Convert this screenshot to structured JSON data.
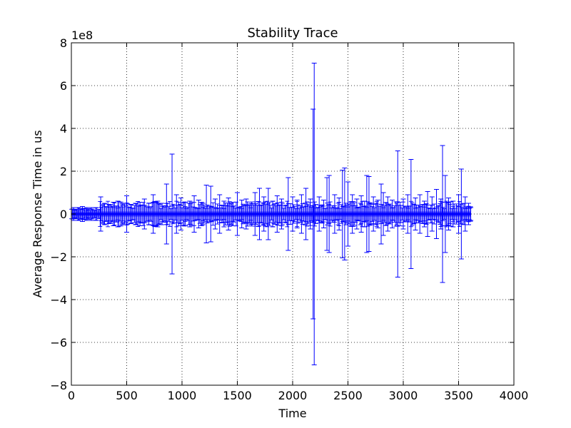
{
  "chart_data": {
    "type": "scatter",
    "title": "Stability Trace",
    "xlabel": "Time",
    "ylabel": "Average Response Time in us",
    "y_offset_label": "1e8",
    "xlim": [
      0,
      4000
    ],
    "ylim": [
      -8,
      8
    ],
    "y_scale": 100000000,
    "grid": true,
    "x_ticks": [
      0,
      500,
      1000,
      1500,
      2000,
      2500,
      3000,
      3500,
      4000
    ],
    "y_ticks": [
      -8,
      -6,
      -4,
      -2,
      0,
      2,
      4,
      6,
      8
    ],
    "x_tick_labels": [
      "0",
      "500",
      "1000",
      "1500",
      "2000",
      "2500",
      "3000",
      "3500",
      "4000"
    ],
    "y_tick_labels": [
      "−8",
      "−6",
      "−4",
      "−2",
      "0",
      "2",
      "4",
      "6",
      "8"
    ],
    "series_color": "#0000ff",
    "x_range": [
      0,
      3610
    ],
    "sampling_note": "representative sample of error-bar traces",
    "points": [
      {
        "x": 20,
        "err": 0.3
      },
      {
        "x": 60,
        "err": 0.3
      },
      {
        "x": 100,
        "err": 0.35
      },
      {
        "x": 140,
        "err": 0.3
      },
      {
        "x": 180,
        "err": 0.3
      },
      {
        "x": 220,
        "err": 0.3
      },
      {
        "x": 265,
        "err": 0.8
      },
      {
        "x": 300,
        "err": 0.5
      },
      {
        "x": 340,
        "err": 0.45
      },
      {
        "x": 380,
        "err": 0.55
      },
      {
        "x": 420,
        "err": 0.6
      },
      {
        "x": 460,
        "err": 0.5
      },
      {
        "x": 500,
        "err": 0.85
      },
      {
        "x": 540,
        "err": 0.45
      },
      {
        "x": 580,
        "err": 0.5
      },
      {
        "x": 620,
        "err": 0.55
      },
      {
        "x": 660,
        "err": 0.7
      },
      {
        "x": 700,
        "err": 0.5
      },
      {
        "x": 740,
        "err": 0.9
      },
      {
        "x": 780,
        "err": 0.6
      },
      {
        "x": 820,
        "err": 0.5
      },
      {
        "x": 860,
        "err": 1.4
      },
      {
        "x": 910,
        "err": 2.8
      },
      {
        "x": 950,
        "err": 0.9
      },
      {
        "x": 990,
        "err": 0.75
      },
      {
        "x": 1030,
        "err": 0.55
      },
      {
        "x": 1070,
        "err": 0.6
      },
      {
        "x": 1110,
        "err": 0.85
      },
      {
        "x": 1150,
        "err": 0.65
      },
      {
        "x": 1190,
        "err": 0.5
      },
      {
        "x": 1220,
        "err": 1.35
      },
      {
        "x": 1260,
        "err": 1.3
      },
      {
        "x": 1300,
        "err": 0.7
      },
      {
        "x": 1340,
        "err": 0.9
      },
      {
        "x": 1380,
        "err": 0.6
      },
      {
        "x": 1420,
        "err": 0.75
      },
      {
        "x": 1460,
        "err": 0.55
      },
      {
        "x": 1500,
        "err": 1.0
      },
      {
        "x": 1540,
        "err": 0.65
      },
      {
        "x": 1580,
        "err": 0.7
      },
      {
        "x": 1620,
        "err": 0.5
      },
      {
        "x": 1660,
        "err": 1.0
      },
      {
        "x": 1700,
        "err": 1.2
      },
      {
        "x": 1740,
        "err": 0.8
      },
      {
        "x": 1780,
        "err": 1.2
      },
      {
        "x": 1820,
        "err": 0.6
      },
      {
        "x": 1860,
        "err": 0.85
      },
      {
        "x": 1900,
        "err": 0.7
      },
      {
        "x": 1960,
        "err": 1.7
      },
      {
        "x": 2000,
        "err": 0.8
      },
      {
        "x": 2040,
        "err": 0.65
      },
      {
        "x": 2080,
        "err": 0.9
      },
      {
        "x": 2120,
        "err": 1.2
      },
      {
        "x": 2160,
        "err": 0.7
      },
      {
        "x": 2185,
        "err": 4.9
      },
      {
        "x": 2195,
        "err": 7.05
      },
      {
        "x": 2240,
        "err": 0.8
      },
      {
        "x": 2280,
        "err": 0.65
      },
      {
        "x": 2310,
        "err": 1.7
      },
      {
        "x": 2330,
        "err": 1.8
      },
      {
        "x": 2380,
        "err": 0.9
      },
      {
        "x": 2420,
        "err": 0.75
      },
      {
        "x": 2450,
        "err": 2.05
      },
      {
        "x": 2470,
        "err": 2.15
      },
      {
        "x": 2500,
        "err": 1.5
      },
      {
        "x": 2540,
        "err": 0.9
      },
      {
        "x": 2580,
        "err": 0.7
      },
      {
        "x": 2620,
        "err": 0.85
      },
      {
        "x": 2650,
        "err": 0.6
      },
      {
        "x": 2670,
        "err": 1.8
      },
      {
        "x": 2690,
        "err": 1.75
      },
      {
        "x": 2730,
        "err": 0.8
      },
      {
        "x": 2770,
        "err": 0.65
      },
      {
        "x": 2800,
        "err": 1.4
      },
      {
        "x": 2820,
        "err": 1.0
      },
      {
        "x": 2860,
        "err": 0.8
      },
      {
        "x": 2900,
        "err": 0.65
      },
      {
        "x": 2950,
        "err": 2.95
      },
      {
        "x": 3000,
        "err": 0.7
      },
      {
        "x": 3040,
        "err": 0.9
      },
      {
        "x": 3070,
        "err": 2.55
      },
      {
        "x": 3110,
        "err": 0.75
      },
      {
        "x": 3150,
        "err": 0.9
      },
      {
        "x": 3190,
        "err": 0.6
      },
      {
        "x": 3220,
        "err": 1.05
      },
      {
        "x": 3260,
        "err": 0.8
      },
      {
        "x": 3300,
        "err": 1.15
      },
      {
        "x": 3340,
        "err": 0.7
      },
      {
        "x": 3355,
        "err": 3.2
      },
      {
        "x": 3380,
        "err": 1.8
      },
      {
        "x": 3410,
        "err": 0.75
      },
      {
        "x": 3450,
        "err": 0.6
      },
      {
        "x": 3500,
        "err": 0.9
      },
      {
        "x": 3525,
        "err": 2.1
      },
      {
        "x": 3560,
        "err": 0.8
      },
      {
        "x": 3590,
        "err": 0.5
      },
      {
        "x": 3610,
        "err": 0.3
      }
    ]
  }
}
